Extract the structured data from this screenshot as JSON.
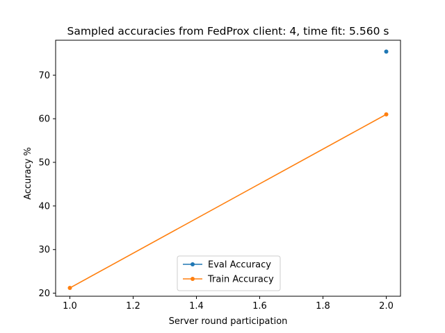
{
  "chart_data": {
    "type": "line",
    "title": "Sampled accuracies from FedProx client: 4, time fit: 5.560 s",
    "xlabel": "Server round participation",
    "ylabel": "Accuracy %",
    "xlim": [
      0.955,
      2.045
    ],
    "ylim": [
      19.3,
      78.0
    ],
    "xticks": [
      1.0,
      1.2,
      1.4,
      1.6,
      1.8,
      2.0
    ],
    "xtick_labels": [
      "1.0",
      "1.2",
      "1.4",
      "1.6",
      "1.8",
      "2.0"
    ],
    "yticks": [
      20,
      30,
      40,
      50,
      60,
      70
    ],
    "ytick_labels": [
      "20",
      "30",
      "40",
      "50",
      "60",
      "70"
    ],
    "grid": false,
    "legend_position": "lower center",
    "series": [
      {
        "name": "Eval Accuracy",
        "color": "#1f77b4",
        "x": [
          2.0
        ],
        "y": [
          75.4
        ]
      },
      {
        "name": "Train Accuracy",
        "color": "#ff7f0e",
        "x": [
          1.0,
          2.0
        ],
        "y": [
          21.2,
          61.0
        ]
      }
    ]
  }
}
